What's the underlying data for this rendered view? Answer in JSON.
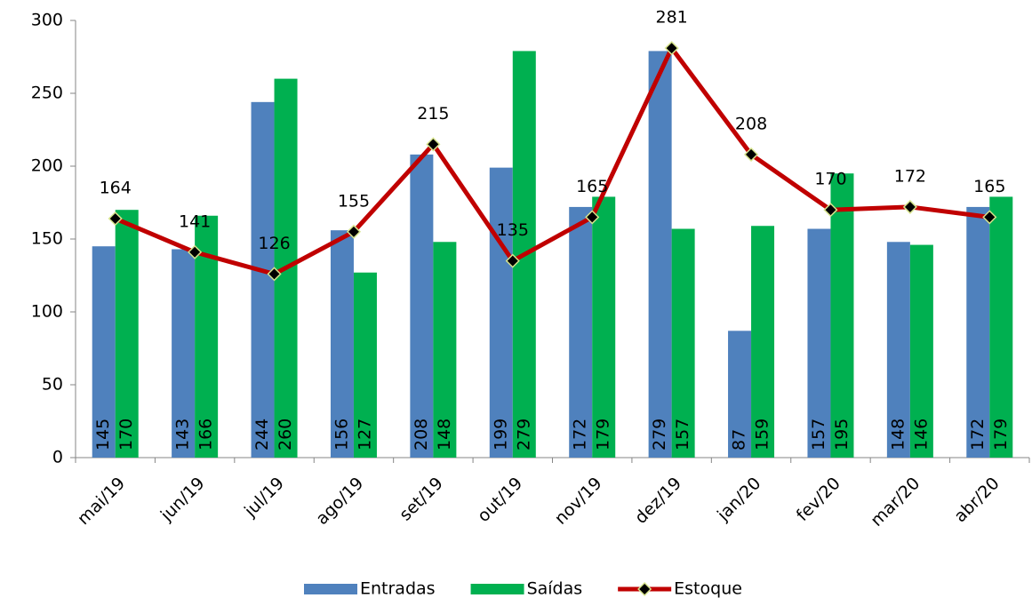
{
  "chart_data": {
    "type": "bar-line",
    "categories": [
      "mai/19",
      "jun/19",
      "jul/19",
      "ago/19",
      "set/19",
      "out/19",
      "nov/19",
      "dez/19",
      "jan/20",
      "fev/20",
      "mar/20",
      "abr/20"
    ],
    "series": [
      {
        "name": "Entradas",
        "type": "bar",
        "color": "#4f81bd",
        "values": [
          145,
          143,
          244,
          156,
          208,
          199,
          172,
          279,
          87,
          157,
          148,
          172
        ]
      },
      {
        "name": "Saídas",
        "type": "bar",
        "color": "#00b050",
        "values": [
          170,
          166,
          260,
          127,
          148,
          279,
          179,
          157,
          159,
          195,
          146,
          179
        ]
      },
      {
        "name": "Estoque",
        "type": "line",
        "color": "#c00000",
        "values": [
          164,
          141,
          126,
          155,
          215,
          135,
          165,
          281,
          208,
          170,
          172,
          165
        ]
      }
    ],
    "ylim": [
      0,
      300
    ],
    "yticks": [
      0,
      50,
      100,
      150,
      200,
      250,
      300
    ],
    "grid": false,
    "legend": "bottom"
  }
}
